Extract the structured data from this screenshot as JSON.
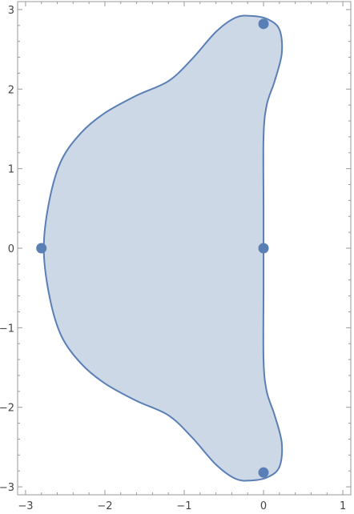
{
  "chart_data": {
    "type": "region",
    "title": "",
    "xlabel": "",
    "ylabel": "",
    "xlim": [
      -3.1,
      1.1
    ],
    "ylim": [
      -3.1,
      3.1
    ],
    "x_ticks": [
      {
        "value": -3,
        "label": "−3"
      },
      {
        "value": -2,
        "label": "−2"
      },
      {
        "value": -1,
        "label": "−1"
      },
      {
        "value": 0,
        "label": "0"
      },
      {
        "value": 1,
        "label": "1"
      }
    ],
    "y_ticks": [
      {
        "value": -3,
        "label": "−3"
      },
      {
        "value": -2,
        "label": "−2"
      },
      {
        "value": -1,
        "label": "−1"
      },
      {
        "value": 0,
        "label": "0"
      },
      {
        "value": 1,
        "label": "1"
      },
      {
        "value": 2,
        "label": "2"
      },
      {
        "value": 3,
        "label": "3"
      }
    ],
    "minor_ticks_per_major": 5,
    "region": {
      "fill_color": "#cdd8e6",
      "stroke_color": "#5a7fb5",
      "boundary": [
        [
          0,
          1.4
        ],
        [
          0.04,
          1.8
        ],
        [
          0.14,
          2.1
        ],
        [
          0.23,
          2.45
        ],
        [
          0.2,
          2.75
        ],
        [
          0.05,
          2.88
        ],
        [
          -0.15,
          2.92
        ],
        [
          -0.35,
          2.9
        ],
        [
          -0.6,
          2.72
        ],
        [
          -0.9,
          2.38
        ],
        [
          -1.2,
          2.1
        ],
        [
          -1.6,
          1.92
        ],
        [
          -2.0,
          1.7
        ],
        [
          -2.3,
          1.45
        ],
        [
          -2.55,
          1.1
        ],
        [
          -2.7,
          0.6
        ],
        [
          -2.77,
          0.0
        ],
        [
          -2.7,
          -0.6
        ],
        [
          -2.55,
          -1.1
        ],
        [
          -2.3,
          -1.45
        ],
        [
          -2.0,
          -1.7
        ],
        [
          -1.6,
          -1.92
        ],
        [
          -1.2,
          -2.1
        ],
        [
          -0.9,
          -2.38
        ],
        [
          -0.6,
          -2.72
        ],
        [
          -0.35,
          -2.9
        ],
        [
          -0.15,
          -2.92
        ],
        [
          0.05,
          -2.88
        ],
        [
          0.2,
          -2.75
        ],
        [
          0.23,
          -2.45
        ],
        [
          0.14,
          -2.1
        ],
        [
          0.04,
          -1.8
        ],
        [
          0,
          -1.4
        ],
        [
          0,
          -0.5
        ],
        [
          0,
          0.5
        ]
      ]
    },
    "points": {
      "color": "#5a7fb5",
      "values": [
        {
          "x": 0,
          "y": 2.82
        },
        {
          "x": -2.8,
          "y": 0
        },
        {
          "x": 0,
          "y": 0
        },
        {
          "x": 0,
          "y": -2.82
        }
      ]
    }
  }
}
